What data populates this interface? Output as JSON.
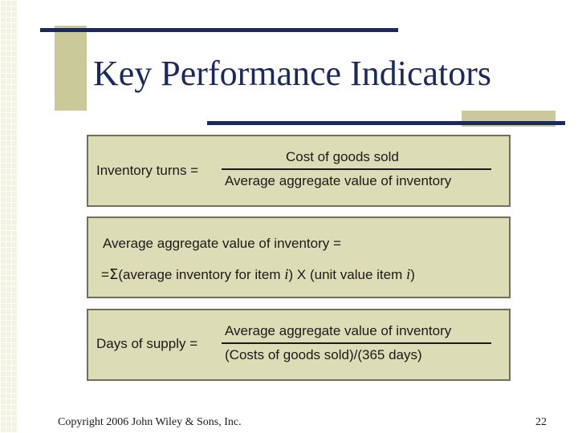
{
  "slide": {
    "title": "Key Performance Indicators",
    "footer": "Copyright 2006 John Wiley & Sons, Inc.",
    "page_number": "22"
  },
  "formula_inventory_turns": {
    "label": "Inventory turns =",
    "numerator": "Cost of goods sold",
    "denominator": "Average aggregate value of inventory"
  },
  "formula_aggregate_value": {
    "line1": "Average aggregate value of inventory =",
    "prefix": "=",
    "sigma": "Σ",
    "part1": "(average inventory for item ",
    "var1": "i",
    "part2": ") X (unit value item ",
    "var2": "i",
    "part3": ")"
  },
  "formula_days_supply": {
    "label": "Days of supply =",
    "numerator": "Average aggregate value of inventory",
    "denominator": "(Costs of goods sold)/(365 days)"
  },
  "colors": {
    "navy": "#1b2a5e",
    "olive": "#c9c99a",
    "box_fill": "#dcdcb6"
  }
}
